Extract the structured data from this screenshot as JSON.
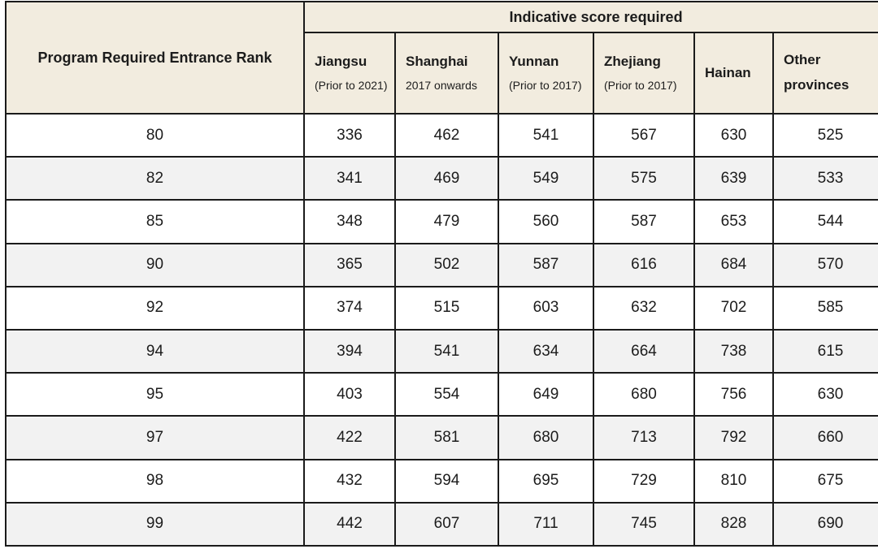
{
  "chart_data": {
    "type": "table",
    "title": "Indicative score required",
    "corner_header": "Program Required Entrance Rank",
    "columns": [
      {
        "name": "Jiangsu",
        "sub": "(Prior to 2021)"
      },
      {
        "name": "Shanghai",
        "sub": "2017 onwards"
      },
      {
        "name": "Yunnan",
        "sub": "(Prior to 2017)"
      },
      {
        "name": "Zhejiang",
        "sub": "(Prior to 2017)"
      },
      {
        "name": "Hainan",
        "sub": ""
      },
      {
        "name": "Other provinces",
        "sub": ""
      }
    ],
    "rows": [
      {
        "rank": "80",
        "scores": [
          "336",
          "462",
          "541",
          "567",
          "630",
          "525"
        ]
      },
      {
        "rank": "82",
        "scores": [
          "341",
          "469",
          "549",
          "575",
          "639",
          "533"
        ]
      },
      {
        "rank": "85",
        "scores": [
          "348",
          "479",
          "560",
          "587",
          "653",
          "544"
        ]
      },
      {
        "rank": "90",
        "scores": [
          "365",
          "502",
          "587",
          "616",
          "684",
          "570"
        ]
      },
      {
        "rank": "92",
        "scores": [
          "374",
          "515",
          "603",
          "632",
          "702",
          "585"
        ]
      },
      {
        "rank": "94",
        "scores": [
          "394",
          "541",
          "634",
          "664",
          "738",
          "615"
        ]
      },
      {
        "rank": "95",
        "scores": [
          "403",
          "554",
          "649",
          "680",
          "756",
          "630"
        ]
      },
      {
        "rank": "97",
        "scores": [
          "422",
          "581",
          "680",
          "713",
          "792",
          "660"
        ]
      },
      {
        "rank": "98",
        "scores": [
          "432",
          "594",
          "695",
          "729",
          "810",
          "675"
        ]
      },
      {
        "rank": "99",
        "scores": [
          "442",
          "607",
          "711",
          "745",
          "828",
          "690"
        ]
      }
    ]
  },
  "colors": {
    "header-bg": "#f2ecdf",
    "row-alt": "#f2f2f2",
    "border": "#1b1b1b",
    "text": "#1c1c1c"
  }
}
